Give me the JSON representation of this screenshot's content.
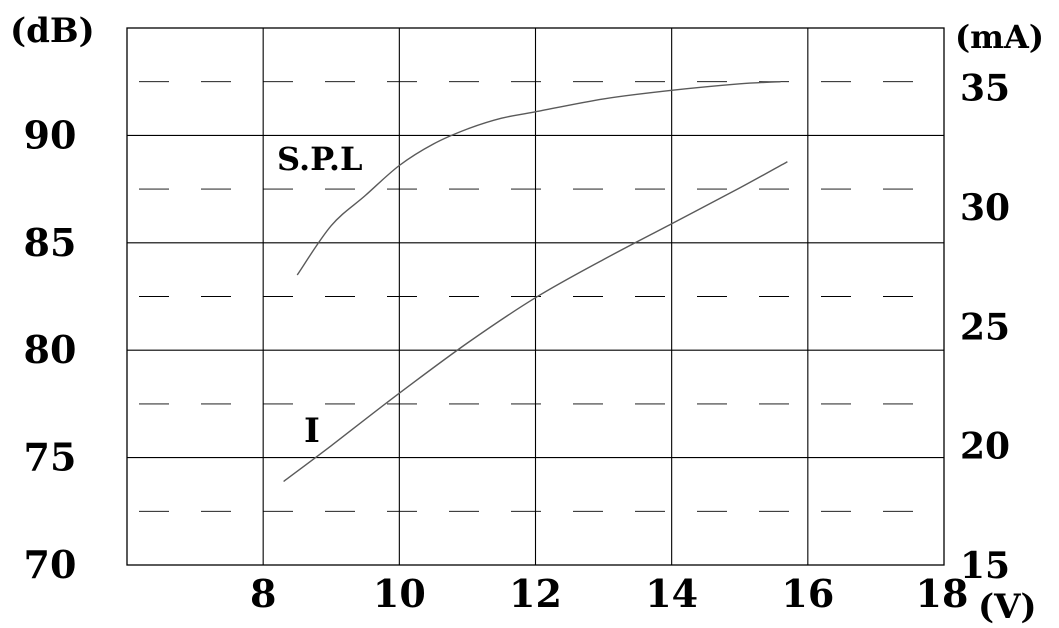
{
  "chart_data": {
    "type": "line",
    "title": "",
    "x_axis": {
      "label": "(V)",
      "range": [
        6,
        18
      ],
      "ticks": [
        "8",
        "10",
        "12",
        "14",
        "16",
        "18"
      ],
      "tick_values": [
        8,
        10,
        12,
        14,
        16,
        18
      ]
    },
    "y_axis_left": {
      "label": "(dB)",
      "range": [
        70,
        95
      ],
      "ticks": [
        "70",
        "75",
        "80",
        "85",
        "90"
      ],
      "tick_values": [
        70,
        75,
        80,
        85,
        90
      ]
    },
    "y_axis_right": {
      "label": "(mA)",
      "range": [
        15,
        37.5
      ],
      "ticks": [
        "15",
        "20",
        "25",
        "30",
        "35"
      ],
      "tick_values": [
        15,
        20,
        25,
        30,
        35
      ]
    },
    "grid": {
      "vertical_solid_at": [
        8,
        10,
        12,
        14,
        16
      ],
      "horizontal_solid_dB": [
        75,
        80,
        85,
        90
      ],
      "horizontal_dashed_dB": [
        72.5,
        77.5,
        82.5,
        87.5,
        92.5
      ]
    },
    "series": [
      {
        "name": "S.P.L",
        "axis": "left",
        "points": [
          {
            "x": 8.5,
            "y": 83.5
          },
          {
            "x": 9.0,
            "y": 85.8
          },
          {
            "x": 9.5,
            "y": 87.2
          },
          {
            "x": 10.0,
            "y": 88.6
          },
          {
            "x": 10.5,
            "y": 89.6
          },
          {
            "x": 11.0,
            "y": 90.3
          },
          {
            "x": 11.5,
            "y": 90.8
          },
          {
            "x": 12.0,
            "y": 91.1
          },
          {
            "x": 13.0,
            "y": 91.7
          },
          {
            "x": 14.0,
            "y": 92.1
          },
          {
            "x": 15.0,
            "y": 92.4
          },
          {
            "x": 15.6,
            "y": 92.5
          }
        ]
      },
      {
        "name": "I",
        "axis": "right",
        "points": [
          {
            "x": 8.3,
            "y": 18.5
          },
          {
            "x": 9.0,
            "y": 20.0
          },
          {
            "x": 10.0,
            "y": 22.2
          },
          {
            "x": 11.0,
            "y": 24.3
          },
          {
            "x": 12.0,
            "y": 26.2
          },
          {
            "x": 13.0,
            "y": 27.8
          },
          {
            "x": 14.0,
            "y": 29.3
          },
          {
            "x": 15.0,
            "y": 30.8
          },
          {
            "x": 15.7,
            "y": 31.9
          }
        ]
      }
    ]
  }
}
